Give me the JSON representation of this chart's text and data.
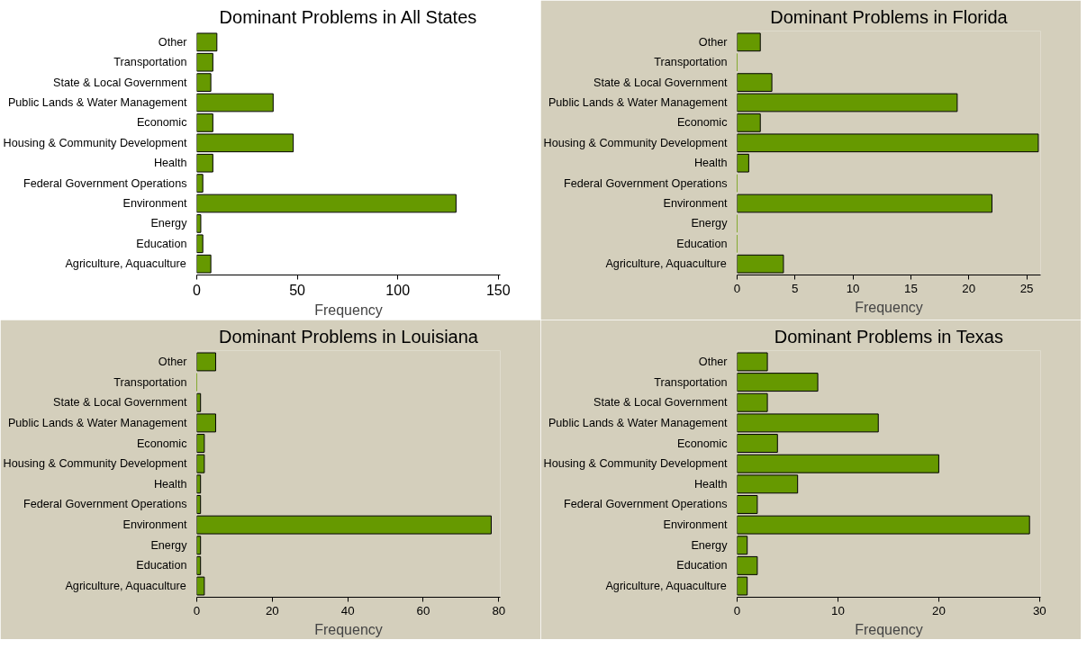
{
  "chart_data": [
    {
      "type": "bar",
      "orientation": "horizontal",
      "title": "Dominant Problems in All States",
      "xlabel": "Frequency",
      "color": "#669900",
      "categories": [
        "Other",
        "Transportation",
        "State & Local Government",
        "Public Lands & Water Management",
        "Economic",
        "Housing & Community Development",
        "Health",
        "Federal Government Operations",
        "Environment",
        "Energy",
        "Education",
        "Agriculture, Aquaculture"
      ],
      "values": [
        10,
        8,
        7,
        38,
        8,
        48,
        8,
        3,
        129,
        2,
        3,
        7
      ],
      "xlim": [
        0,
        151
      ],
      "xticks": [
        0,
        50,
        100,
        150
      ]
    },
    {
      "type": "bar",
      "orientation": "horizontal",
      "title": "Dominant Problems in Florida",
      "xlabel": "Frequency",
      "color": "#669900",
      "categories": [
        "Other",
        "Transportation",
        "State & Local Government",
        "Public Lands & Water Management",
        "Economic",
        "Housing & Community Development",
        "Health",
        "Federal Government Operations",
        "Environment",
        "Energy",
        "Education",
        "Agriculture, Aquaculture"
      ],
      "values": [
        2,
        0,
        3,
        19,
        2,
        26,
        1,
        0,
        22,
        0,
        0,
        4
      ],
      "xlim": [
        0,
        26.2
      ],
      "xticks": [
        0,
        5,
        10,
        15,
        20,
        25
      ]
    },
    {
      "type": "bar",
      "orientation": "horizontal",
      "title": "Dominant Problems in Louisiana",
      "xlabel": "Frequency",
      "color": "#669900",
      "categories": [
        "Other",
        "Transportation",
        "State & Local Government",
        "Public Lands & Water Management",
        "Economic",
        "Housing & Community Development",
        "Health",
        "Federal Government Operations",
        "Environment",
        "Energy",
        "Education",
        "Agriculture, Aquaculture"
      ],
      "values": [
        5,
        0,
        1,
        5,
        2,
        2,
        1,
        1,
        78,
        1,
        1,
        2
      ],
      "xlim": [
        0,
        80.4
      ],
      "xticks": [
        0,
        20,
        40,
        60,
        80
      ]
    },
    {
      "type": "bar",
      "orientation": "horizontal",
      "title": "Dominant Problems in Texas",
      "xlabel": "Frequency",
      "color": "#669900",
      "categories": [
        "Other",
        "Transportation",
        "State & Local Government",
        "Public Lands & Water Management",
        "Economic",
        "Housing & Community Development",
        "Health",
        "Federal Government Operations",
        "Environment",
        "Energy",
        "Education",
        "Agriculture, Aquaculture"
      ],
      "values": [
        3,
        8,
        3,
        14,
        4,
        20,
        6,
        2,
        29,
        1,
        2,
        1
      ],
      "xlim": [
        0,
        30.1
      ],
      "xticks": [
        0,
        10,
        20,
        30
      ]
    }
  ]
}
